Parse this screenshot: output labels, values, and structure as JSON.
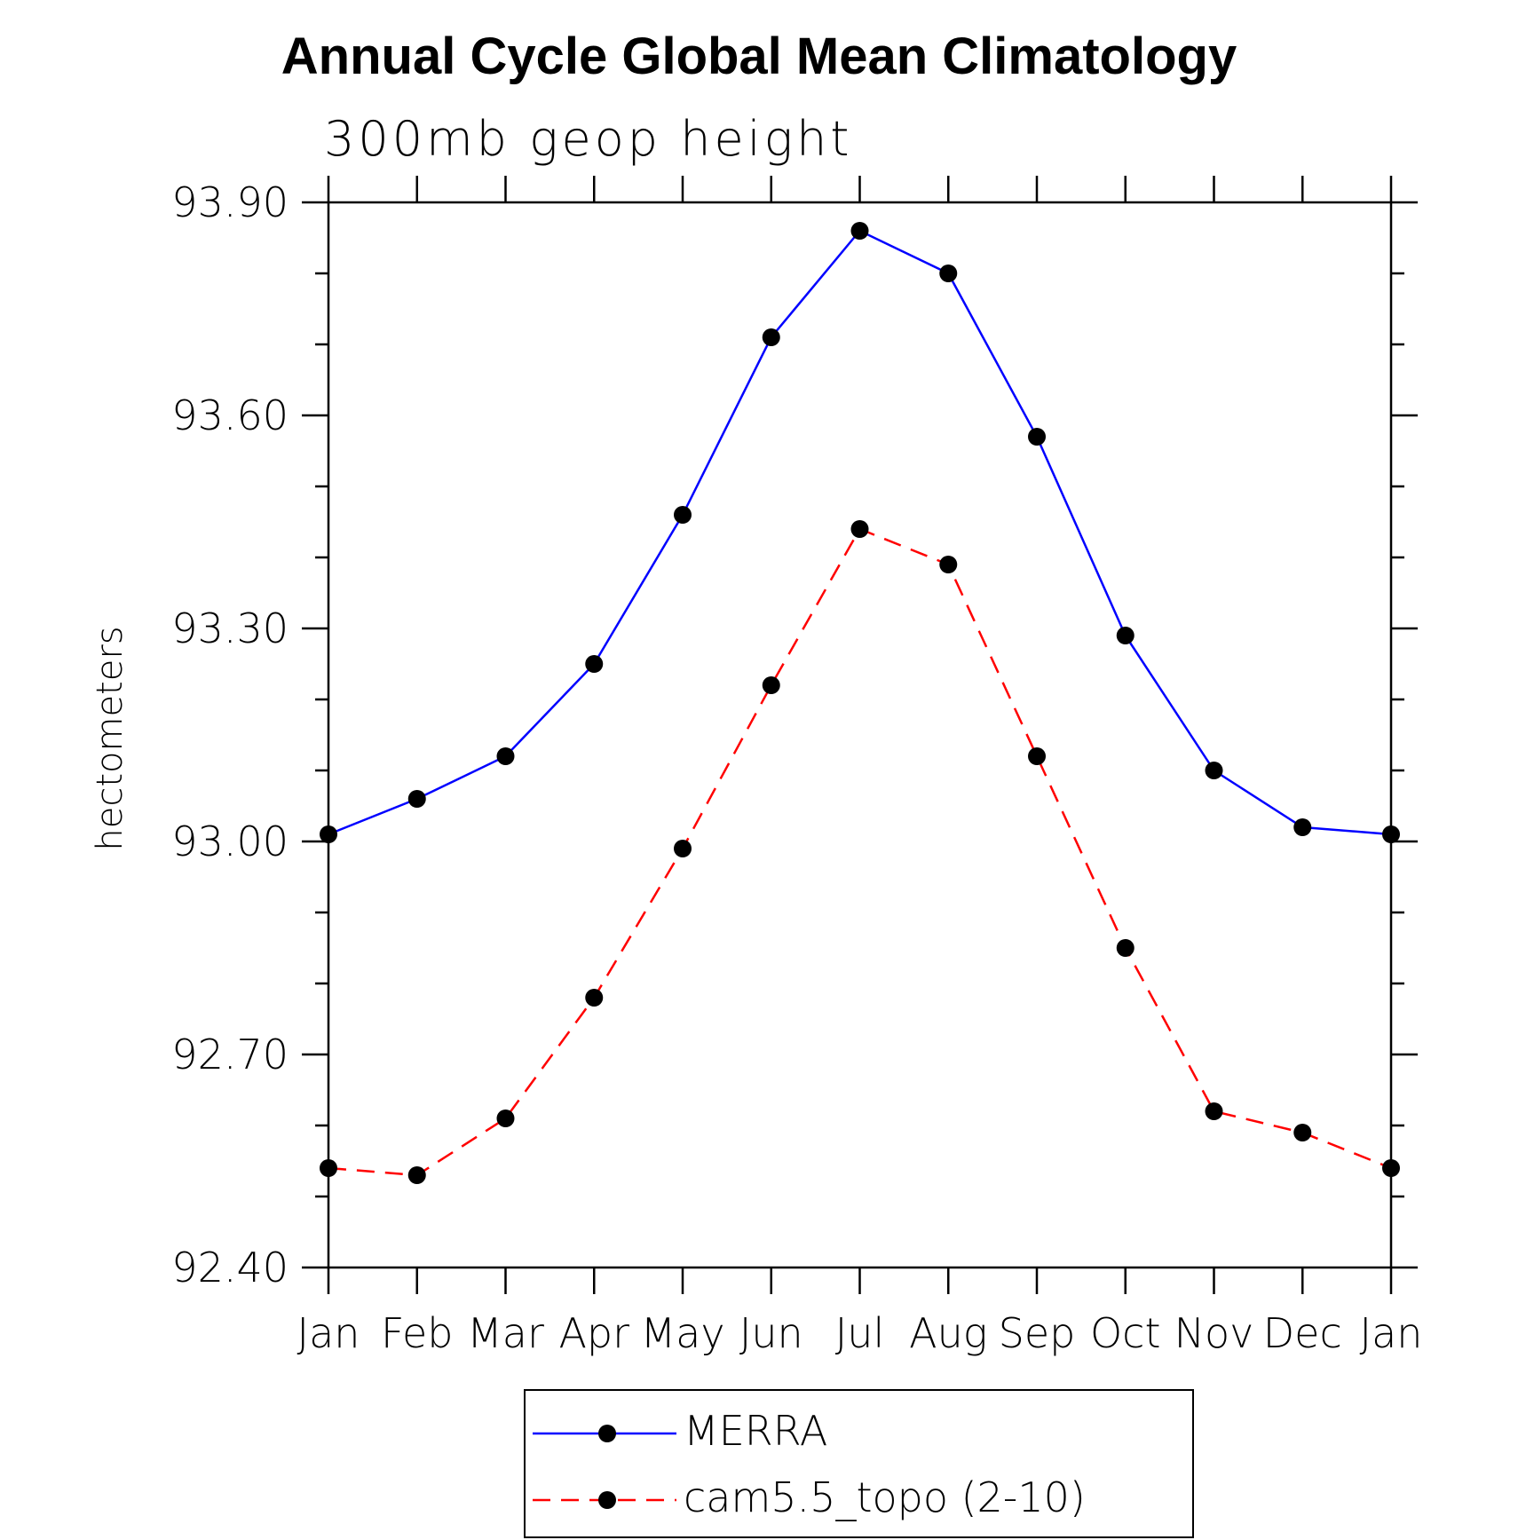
{
  "chart_data": {
    "type": "line",
    "title": "Annual Cycle Global Mean Climatology",
    "subtitle": "300mb geop height",
    "ylabel": "hectometers",
    "xlabel": "",
    "categories": [
      "Jan",
      "Feb",
      "Mar",
      "Apr",
      "May",
      "Jun",
      "Jul",
      "Aug",
      "Sep",
      "Oct",
      "Nov",
      "Dec",
      "Jan"
    ],
    "ylim": [
      92.4,
      93.9
    ],
    "yticks": [
      "93.90",
      "93.60",
      "93.30",
      "93.00",
      "92.70",
      "92.40"
    ],
    "series": [
      {
        "name": "MERRA",
        "color": "#0000ff",
        "dash": "solid",
        "values": [
          93.01,
          93.06,
          93.12,
          93.25,
          93.46,
          93.71,
          93.86,
          93.8,
          93.57,
          93.29,
          93.1,
          93.02,
          93.01
        ]
      },
      {
        "name": "cam5.5_topo (2-10)",
        "color": "#ff0000",
        "dash": "dashed",
        "values": [
          92.54,
          92.53,
          92.61,
          92.78,
          92.99,
          93.22,
          93.44,
          93.39,
          93.12,
          92.85,
          92.62,
          92.59,
          92.54
        ]
      }
    ],
    "legend": "bottom-center",
    "grid": false
  }
}
